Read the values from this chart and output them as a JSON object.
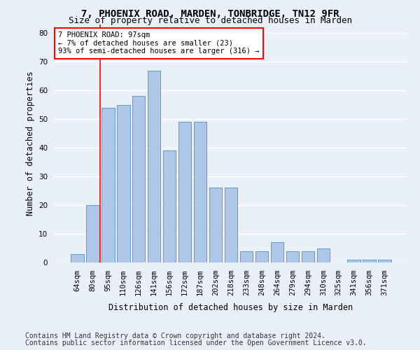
{
  "title1": "7, PHOENIX ROAD, MARDEN, TONBRIDGE, TN12 9FR",
  "title2": "Size of property relative to detached houses in Marden",
  "xlabel": "Distribution of detached houses by size in Marden",
  "ylabel": "Number of detached properties",
  "categories": [
    "64sqm",
    "80sqm",
    "95sqm",
    "110sqm",
    "126sqm",
    "141sqm",
    "156sqm",
    "172sqm",
    "187sqm",
    "202sqm",
    "218sqm",
    "233sqm",
    "248sqm",
    "264sqm",
    "279sqm",
    "294sqm",
    "310sqm",
    "325sqm",
    "341sqm",
    "356sqm",
    "371sqm"
  ],
  "values": [
    3,
    20,
    54,
    55,
    58,
    67,
    39,
    49,
    49,
    26,
    26,
    4,
    4,
    7,
    4,
    4,
    5,
    0,
    1,
    1,
    1
  ],
  "bar_color": "#aec6e8",
  "bar_edge_color": "#5a9fd4",
  "annotation_box_text": "7 PHOENIX ROAD: 97sqm\n← 7% of detached houses are smaller (23)\n93% of semi-detached houses are larger (316) →",
  "annotation_box_color": "white",
  "annotation_box_edge_color": "red",
  "red_line_x": 1.5,
  "ylim": [
    0,
    83
  ],
  "yticks": [
    0,
    10,
    20,
    30,
    40,
    50,
    60,
    70,
    80
  ],
  "footer1": "Contains HM Land Registry data © Crown copyright and database right 2024.",
  "footer2": "Contains public sector information licensed under the Open Government Licence v3.0.",
  "background_color": "#eaf0f8",
  "plot_background_color": "#eaf0f8",
  "grid_color": "white",
  "title1_fontsize": 10,
  "title2_fontsize": 9,
  "axis_label_fontsize": 8.5,
  "tick_fontsize": 7.5,
  "annotation_fontsize": 7.5,
  "footer_fontsize": 7
}
